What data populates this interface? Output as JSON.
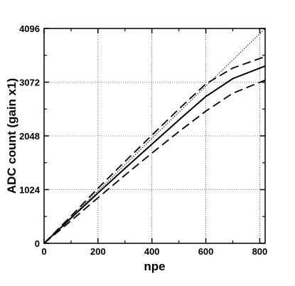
{
  "chart_data": {
    "type": "line",
    "title": "",
    "xlabel": "npe",
    "ylabel": "ADC count (gain x1)",
    "xlim": [
      0,
      820
    ],
    "ylim": [
      0,
      4096
    ],
    "x_ticks": [
      0,
      200,
      400,
      600,
      800
    ],
    "y_ticks": [
      0,
      1024,
      2048,
      3072,
      4096
    ],
    "x_tick_labels": [
      "0",
      "200",
      "400",
      "600",
      "800"
    ],
    "y_tick_labels": [
      "0",
      "1024",
      "2048",
      "3072",
      "4096"
    ],
    "grid": true,
    "legend": "none",
    "series": [
      {
        "line_style": "dotted",
        "color": "#000000",
        "x": [
          0,
          820
        ],
        "y": [
          0,
          4096
        ]
      },
      {
        "line_style": "dashed",
        "color": "#000000",
        "x": [
          0,
          100,
          200,
          300,
          400,
          500,
          600,
          700,
          820
        ],
        "y": [
          0,
          520,
          1050,
          1560,
          2060,
          2560,
          3040,
          3340,
          3560
        ]
      },
      {
        "line_style": "solid",
        "color": "#000000",
        "x": [
          0,
          100,
          200,
          300,
          400,
          500,
          600,
          700,
          820
        ],
        "y": [
          0,
          480,
          960,
          1430,
          1890,
          2350,
          2800,
          3140,
          3380
        ]
      },
      {
        "line_style": "dashed",
        "color": "#000000",
        "x": [
          0,
          100,
          200,
          300,
          400,
          500,
          600,
          700,
          820
        ],
        "y": [
          0,
          430,
          870,
          1300,
          1720,
          2130,
          2520,
          2860,
          3110
        ]
      }
    ]
  }
}
